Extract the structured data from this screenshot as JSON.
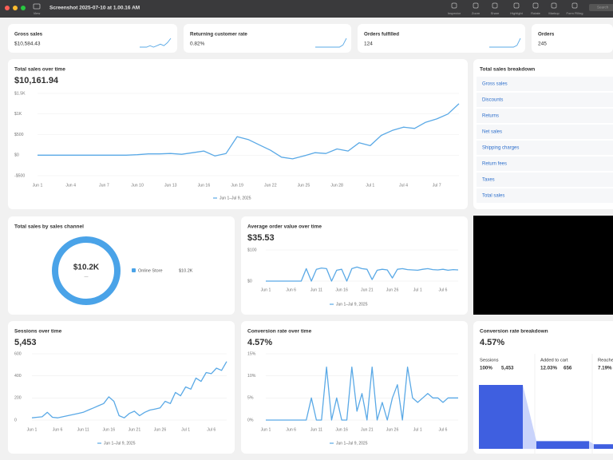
{
  "window": {
    "title": "Screenshot 2025-07-10 at 1.00.16 AM",
    "view_label": "View",
    "toolbar": [
      "Inspector",
      "Zoom",
      "Share",
      "Highlight",
      "Rotate",
      "Markup",
      "Form Filling"
    ],
    "search_placeholder": "Search"
  },
  "kpis": [
    {
      "label": "Gross sales",
      "value": "$10,584.43",
      "sparkline": [
        0,
        0,
        0,
        1,
        0,
        1,
        2,
        1,
        3,
        6
      ]
    },
    {
      "label": "Returning customer rate",
      "value": "0.82%",
      "sparkline": [
        0,
        0,
        0,
        0,
        0,
        0,
        0,
        0,
        2,
        8
      ]
    },
    {
      "label": "Orders fulfilled",
      "value": "124",
      "sparkline": [
        0,
        0,
        0,
        0,
        0,
        0,
        0,
        0,
        1,
        5
      ]
    },
    {
      "label": "Orders",
      "value": "245"
    }
  ],
  "total_sales": {
    "type": "line",
    "title": "Total sales over time",
    "value": "$10,161.94",
    "color": "#5aa9e6",
    "grid": true,
    "categories": [
      "Jun 1",
      null,
      null,
      "Jun 4",
      null,
      null,
      "Jun 7",
      null,
      null,
      "Jun 10",
      null,
      null,
      "Jun 13",
      null,
      null,
      "Jun 16",
      null,
      null,
      "Jun 19",
      null,
      null,
      "Jun 22",
      null,
      null,
      "Jun 25",
      null,
      null,
      "Jun 28",
      null,
      null,
      "Jul 1",
      null,
      null,
      "Jul 4",
      null,
      null,
      "Jul 7",
      null,
      null
    ],
    "values": [
      0,
      0,
      0,
      0,
      0,
      0,
      0,
      0,
      0,
      10,
      30,
      30,
      40,
      20,
      60,
      100,
      -20,
      40,
      450,
      380,
      250,
      120,
      -50,
      -90,
      -20,
      60,
      40,
      150,
      100,
      300,
      230,
      480,
      600,
      680,
      650,
      800,
      880,
      1000,
      1250
    ],
    "ylim": [
      -500,
      1500
    ],
    "yticks": [
      {
        "value": 1500,
        "label": "$1.5K"
      },
      {
        "value": 1000,
        "label": "$1K"
      },
      {
        "value": 500,
        "label": "$500"
      },
      {
        "value": 0,
        "label": "$0"
      },
      {
        "value": -500,
        "label": "-$500"
      }
    ],
    "legend": "Jun 1–Jul 9, 2025"
  },
  "breakdown": {
    "title": "Total sales breakdown",
    "items": [
      "Gross sales",
      "Discounts",
      "Returns",
      "Net sales",
      "Shipping charges",
      "Return fees",
      "Taxes",
      "Total sales"
    ]
  },
  "channel": {
    "type": "pie",
    "title": "Total sales by sales channel",
    "total_label": "$10.2K",
    "total_sub": "—",
    "categories": [
      "Online Store"
    ],
    "values": [
      10200
    ],
    "value_labels": [
      "$10.2K"
    ],
    "color": "#4aa3e8"
  },
  "aov": {
    "type": "line",
    "title": "Average order value over time",
    "value": "$35.53",
    "color": "#5aa9e6",
    "grid": true,
    "categories": [
      "Jun 1",
      null,
      null,
      null,
      null,
      "Jun 6",
      null,
      null,
      null,
      null,
      "Jun 11",
      null,
      null,
      null,
      null,
      "Jun 16",
      null,
      null,
      null,
      null,
      "Jun 21",
      null,
      null,
      null,
      null,
      "Jun 26",
      null,
      null,
      null,
      null,
      "Jul 1",
      null,
      null,
      null,
      null,
      "Jul 6",
      null,
      null,
      null
    ],
    "values": [
      0,
      0,
      0,
      0,
      0,
      0,
      0,
      0,
      40,
      0,
      38,
      42,
      40,
      0,
      35,
      38,
      0,
      40,
      45,
      40,
      38,
      5,
      35,
      38,
      36,
      10,
      38,
      40,
      37,
      36,
      35,
      38,
      40,
      37,
      36,
      38,
      35,
      37,
      36
    ],
    "ylim": [
      0,
      100
    ],
    "yticks": [
      {
        "value": 100,
        "label": "$100"
      },
      {
        "value": 0,
        "label": "$0"
      }
    ],
    "legend": "Jun 1–Jul 9, 2025"
  },
  "sessions": {
    "type": "line",
    "title": "Sessions over time",
    "value": "5,453",
    "color": "#5aa9e6",
    "grid": true,
    "categories": [
      "Jun 1",
      null,
      null,
      null,
      null,
      "Jun 6",
      null,
      null,
      null,
      null,
      "Jun 11",
      null,
      null,
      null,
      null,
      "Jun 16",
      null,
      null,
      null,
      null,
      "Jun 21",
      null,
      null,
      null,
      null,
      "Jun 26",
      null,
      null,
      null,
      null,
      "Jul 1",
      null,
      null,
      null,
      null,
      "Jul 6",
      null,
      null,
      null
    ],
    "values": [
      20,
      25,
      30,
      70,
      25,
      20,
      30,
      40,
      50,
      60,
      70,
      90,
      110,
      130,
      150,
      210,
      170,
      40,
      20,
      60,
      80,
      40,
      70,
      90,
      100,
      110,
      170,
      150,
      250,
      220,
      300,
      280,
      380,
      350,
      430,
      420,
      470,
      450,
      530
    ],
    "ylim": [
      0,
      600
    ],
    "yticks": [
      600,
      400,
      200,
      0
    ],
    "legend": "Jun 1–Jul 9, 2025"
  },
  "conversion": {
    "type": "line",
    "title": "Conversion rate over time",
    "value": "4.57%",
    "color": "#5aa9e6",
    "grid": true,
    "categories": [
      "Jun 1",
      null,
      null,
      null,
      null,
      "Jun 6",
      null,
      null,
      null,
      null,
      "Jun 11",
      null,
      null,
      null,
      null,
      "Jun 16",
      null,
      null,
      null,
      null,
      "Jun 21",
      null,
      null,
      null,
      null,
      "Jun 26",
      null,
      null,
      null,
      null,
      "Jul 1",
      null,
      null,
      null,
      null,
      "Jul 6",
      null,
      null,
      null
    ],
    "values": [
      0,
      0,
      0,
      0,
      0,
      0,
      0,
      0,
      0,
      5,
      0,
      0,
      12,
      0,
      5,
      0,
      0,
      12,
      2,
      6,
      0,
      12,
      0,
      4,
      0,
      5,
      8,
      0,
      12,
      5,
      4,
      5,
      6,
      5,
      5,
      4,
      5,
      5,
      5
    ],
    "ylim": [
      0,
      15
    ],
    "yticks": [
      {
        "value": 15,
        "label": "15%"
      },
      {
        "value": 10,
        "label": "10%"
      },
      {
        "value": 5,
        "label": "5%"
      },
      {
        "value": 0,
        "label": "0%"
      }
    ],
    "legend": "Jun 1–Jul 9, 2025"
  },
  "funnel": {
    "type": "bar",
    "title": "Conversion rate breakdown",
    "value": "4.57%",
    "color": "#3f5fe0",
    "categories": [
      "Sessions",
      "Added to cart",
      "Reache"
    ],
    "values": [
      100,
      12.03,
      7.19
    ],
    "value_labels": [
      "100%",
      "12.03%",
      "7.19%"
    ],
    "counts": [
      "5,453",
      "656"
    ],
    "ylim": [
      0,
      100
    ]
  }
}
